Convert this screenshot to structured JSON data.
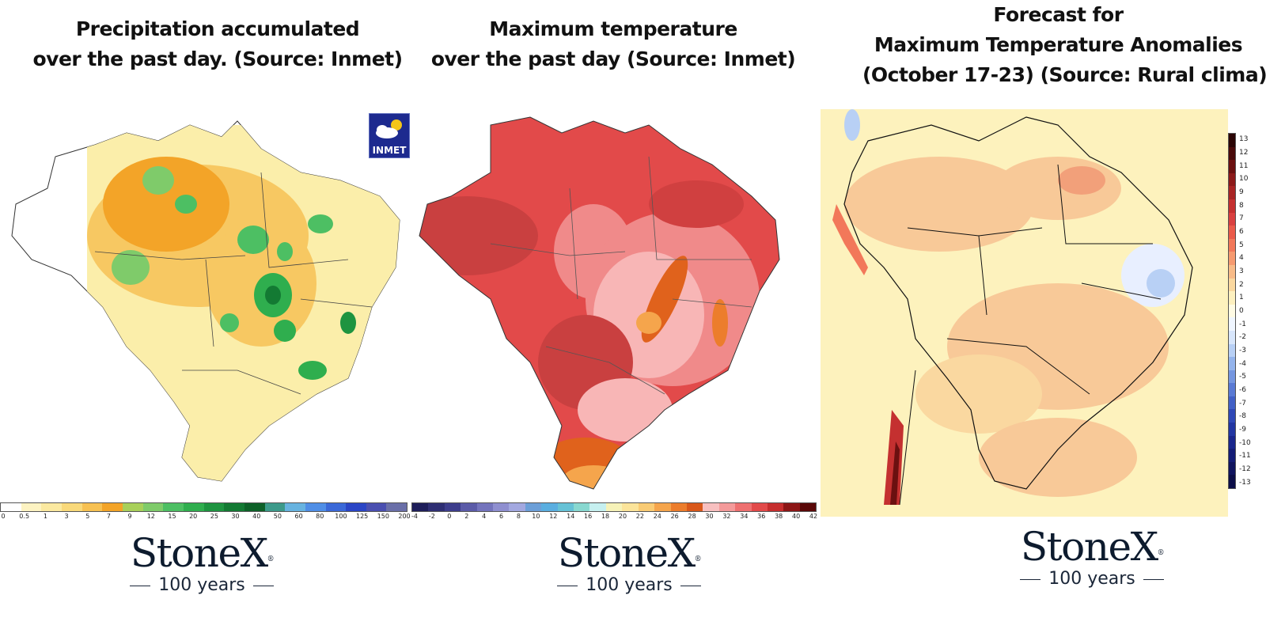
{
  "panels": [
    {
      "title_line1": "Precipitation accumulated",
      "title_line2": "over the past day. (Source: Inmet)",
      "badge_text": "INMET",
      "legend_ticks": [
        "0",
        "0.5",
        "1",
        "3",
        "5",
        "7",
        "9",
        "12",
        "15",
        "20",
        "25",
        "30",
        "40",
        "50",
        "60",
        "80",
        "100",
        "125",
        "150",
        "200"
      ],
      "legend_colors": [
        "#ffffff",
        "#fdf3c2",
        "#fbe9a0",
        "#f9d97a",
        "#f7c152",
        "#f3a428",
        "#a8d05a",
        "#7fcb6a",
        "#4dbf63",
        "#2fae4e",
        "#1e9440",
        "#137a33",
        "#0d6128",
        "#3c9a8a",
        "#67b3e0",
        "#4f8ee6",
        "#3a68d8",
        "#2a45c6",
        "#4a4fb0",
        "#6a6fa8"
      ]
    },
    {
      "title_line1": "Maximum temperature",
      "title_line2": "over the past day (Source: Inmet)",
      "legend_ticks": [
        "-4",
        "-2",
        "0",
        "2",
        "4",
        "6",
        "8",
        "10",
        "12",
        "14",
        "16",
        "18",
        "20",
        "22",
        "24",
        "26",
        "28",
        "30",
        "32",
        "34",
        "36",
        "38",
        "40",
        "42"
      ],
      "legend_colors": [
        "#1e1e5a",
        "#2e2e73",
        "#3d3d8c",
        "#5b5ba8",
        "#7474bd",
        "#8f8fd0",
        "#a3a8e0",
        "#6c9fd8",
        "#5aaee0",
        "#66c2d6",
        "#88d8d0",
        "#c6f0f0",
        "#f6f2b8",
        "#fbe49a",
        "#f9cb74",
        "#f5a54c",
        "#ec7d2c",
        "#d9581a",
        "#f8c0c0",
        "#f49a9a",
        "#ee7070",
        "#e24a4a",
        "#c62e2e",
        "#8c1616",
        "#5a0808"
      ]
    },
    {
      "title_line1": "Forecast for",
      "title_line2": "Maximum Temperature Anomalies",
      "title_line3": "(October 17-23) (Source: Rural clima)",
      "legend_ticks": [
        "13",
        "12",
        "11",
        "10",
        "9",
        "8",
        "7",
        "6",
        "5",
        "4",
        "3",
        "2",
        "1",
        "0",
        "-1",
        "-2",
        "-3",
        "-4",
        "-5",
        "-6",
        "-7",
        "-8",
        "-9",
        "-10",
        "-11",
        "-12",
        "-13"
      ],
      "legend_colors": [
        "#2b0505",
        "#4a0a0a",
        "#6b1010",
        "#8c1a1a",
        "#a82424",
        "#c43030",
        "#d94040",
        "#ea5a4a",
        "#f2785a",
        "#f69a70",
        "#f8bb88",
        "#fad8a0",
        "#fdf0bf",
        "#fffbe4",
        "#f0f6ff",
        "#d8e6fb",
        "#b8d0f5",
        "#94b4ec",
        "#7596e0",
        "#5a7ad4",
        "#4260c6",
        "#2f48b6",
        "#2236a2",
        "#1a268c",
        "#141c76",
        "#10145e",
        "#0c0e48"
      ]
    }
  ],
  "logos": [
    {
      "brand": "StoneX",
      "mark": "®",
      "years": "100 years"
    },
    {
      "brand": "StoneX",
      "mark": "®",
      "years": "100 years"
    },
    {
      "brand": "StoneX",
      "mark": "®",
      "years": "100 years"
    }
  ]
}
